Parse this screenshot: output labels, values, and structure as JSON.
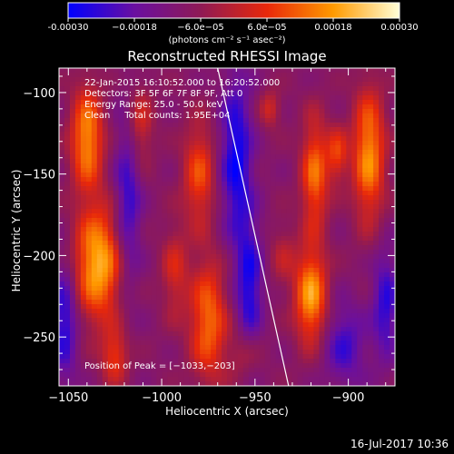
{
  "chart_data": {
    "type": "heatmap",
    "title": "Reconstructed RHESSI Image",
    "xlabel": "Heliocentric X (arcsec)",
    "ylabel": "Heliocentric Y (arcsec)",
    "xlim": [
      -1055,
      -875
    ],
    "ylim": [
      -280,
      -85
    ],
    "xticks": [
      -1050,
      -1000,
      -950,
      -900
    ],
    "yticks": [
      -100,
      -150,
      -200,
      -250
    ],
    "xticklabels": [
      "−1050",
      "−1000",
      "−950",
      "−900"
    ],
    "yticklabels": [
      "−100",
      "−150",
      "−200",
      "−250"
    ],
    "colorbar": {
      "range": [
        -0.0003,
        0.0003
      ],
      "ticklabels": [
        "-0.00030",
        "−0.00018",
        "−6.0e−05",
        "6.0e−05",
        "0.00018",
        "0.00030"
      ],
      "tickvalues": [
        -0.0003,
        -0.00018,
        -6e-05,
        6e-05,
        0.00018,
        0.0003
      ],
      "unit_label": "(photons cm⁻² s⁻¹ asec⁻²)",
      "colors": [
        "#0000ff",
        "#6a0fa0",
        "#8f1a55",
        "#e8280a",
        "#ff9a00",
        "#ffffd8"
      ]
    },
    "annotations": [
      "22-Jan-2015 16:10:52.000 to 16:20:52.000",
      "Detectors: 3F 5F 6F 7F 8F 9F, Att 0",
      "Energy Range: 25.0 - 50.0 keV",
      "Clean     Total counts: 1.95E+04"
    ],
    "peak_label": "Position of Peak = [−1033,−203]",
    "peak": [
      -1033,
      -203
    ],
    "limb_line": [
      [
        -970,
        -85
      ],
      [
        -932,
        -280
      ]
    ],
    "bright_sources": [
      {
        "x": -1040,
        "y": -128,
        "sx": 6,
        "sy": 22,
        "amp": 0.00026
      },
      {
        "x": -1034,
        "y": -205,
        "sx": 9,
        "sy": 24,
        "amp": 0.0003
      },
      {
        "x": -1025,
        "y": -262,
        "sx": 5,
        "sy": 12,
        "amp": 0.00016
      },
      {
        "x": -1012,
        "y": -120,
        "sx": 5,
        "sy": 18,
        "amp": 0.00014
      },
      {
        "x": -993,
        "y": -210,
        "sx": 5,
        "sy": 20,
        "amp": 0.00012
      },
      {
        "x": -980,
        "y": -150,
        "sx": 6,
        "sy": 22,
        "amp": 0.00018
      },
      {
        "x": -975,
        "y": -240,
        "sx": 7,
        "sy": 26,
        "amp": 0.00022
      },
      {
        "x": -955,
        "y": -260,
        "sx": 6,
        "sy": 12,
        "amp": 0.0001
      },
      {
        "x": -942,
        "y": -110,
        "sx": 4,
        "sy": 8,
        "amp": 0.00012
      },
      {
        "x": -935,
        "y": -200,
        "sx": 5,
        "sy": 14,
        "amp": 8e-05
      },
      {
        "x": -918,
        "y": -150,
        "sx": 5,
        "sy": 24,
        "amp": 0.00022
      },
      {
        "x": -920,
        "y": -225,
        "sx": 6,
        "sy": 20,
        "amp": 0.00028
      },
      {
        "x": -906,
        "y": -138,
        "sx": 4,
        "sy": 12,
        "amp": 0.00016
      },
      {
        "x": -889,
        "y": -138,
        "sx": 6,
        "sy": 28,
        "amp": 0.00026
      }
    ],
    "dark_sources": [
      {
        "x": -1052,
        "y": -240,
        "sx": 5,
        "sy": 26,
        "amp": -0.00018
      },
      {
        "x": -1018,
        "y": -165,
        "sx": 5,
        "sy": 40,
        "amp": -0.00016
      },
      {
        "x": -960,
        "y": -140,
        "sx": 6,
        "sy": 36,
        "amp": -0.0002
      },
      {
        "x": -953,
        "y": -220,
        "sx": 5,
        "sy": 30,
        "amp": -0.00018
      },
      {
        "x": -902,
        "y": -255,
        "sx": 8,
        "sy": 18,
        "amp": -0.00014
      },
      {
        "x": -880,
        "y": -230,
        "sx": 5,
        "sy": 24,
        "amp": -0.00016
      }
    ],
    "grid": false
  },
  "footer": {
    "timestamp": "16-Jul-2017 10:36"
  }
}
